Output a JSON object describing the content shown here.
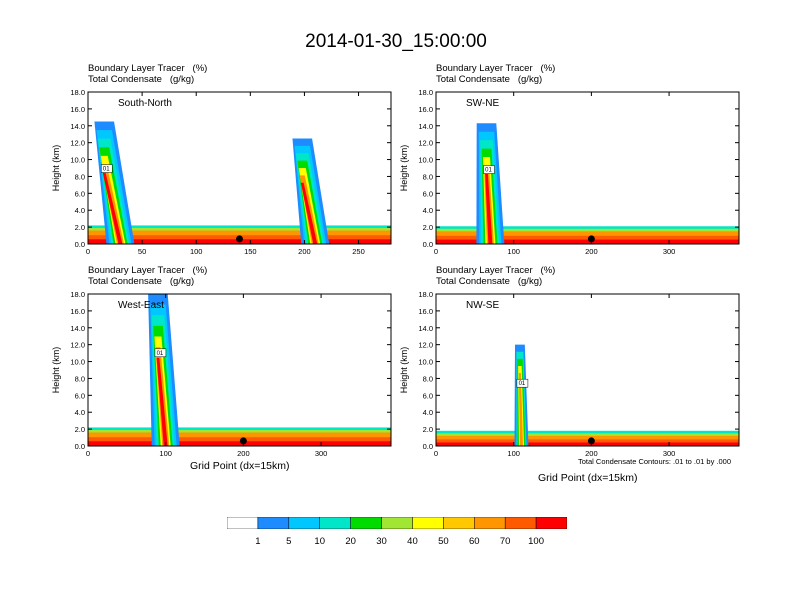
{
  "title": "2014-01-30_15:00:00",
  "panel_header": {
    "line1": "Boundary Layer Tracer   (%)",
    "line2": "Total Condensate   (g/kg)"
  },
  "y_axis_label": "Height (km)",
  "x_axis_label": "Grid Point (dx=15km)",
  "contour_note": "Total Condensate Contours: .01 to .01 by .000",
  "contour_label": "01",
  "colorbar": {
    "labels": [
      "1",
      "5",
      "10",
      "20",
      "30",
      "40",
      "50",
      "60",
      "70",
      "100"
    ],
    "colors": [
      "#ffffff",
      "#1e8cff",
      "#00c8ff",
      "#00e6c8",
      "#00dc00",
      "#a0e632",
      "#ffff00",
      "#ffc800",
      "#ff9600",
      "#ff5a00",
      "#ff0000"
    ]
  },
  "chart_data": [
    {
      "type": "heatmap",
      "panel": "South-North",
      "title": "South-North",
      "xlabel": "",
      "ylabel": "Height (km)",
      "xlim": [
        0,
        280
      ],
      "ylim": [
        0,
        18
      ],
      "x_ticks": [
        0,
        50,
        100,
        150,
        200,
        250
      ],
      "y_ticks": [
        "0.0",
        "2.0",
        "4.0",
        "6.0",
        "8.0",
        "10.0",
        "12.0",
        "14.0",
        "16.0",
        "18.0"
      ],
      "marker_x": 140,
      "plumes": [
        {
          "x_base": 30,
          "x_top": 15,
          "top_km": 14.5,
          "intensity": "high"
        },
        {
          "x_base": 210,
          "x_top": 198,
          "top_km": 12.5,
          "intensity": "high"
        }
      ],
      "boundary_layer_top_km": 1.6
    },
    {
      "type": "heatmap",
      "panel": "SW-NE",
      "title": "SW-NE",
      "xlabel": "",
      "ylabel": "Height (km)",
      "xlim": [
        0,
        390
      ],
      "ylim": [
        0,
        18
      ],
      "x_ticks": [
        0,
        100,
        200,
        300
      ],
      "y_ticks": [
        "0.0",
        "2.0",
        "4.0",
        "6.0",
        "8.0",
        "10.0",
        "12.0",
        "14.0",
        "16.0",
        "18.0"
      ],
      "marker_x": 200,
      "plumes": [
        {
          "x_base": 70,
          "x_top": 65,
          "top_km": 14.3,
          "intensity": "high"
        }
      ],
      "boundary_layer_top_km": 1.5
    },
    {
      "type": "heatmap",
      "panel": "West-East",
      "title": "West-East",
      "xlabel": "Grid Point (dx=15km)",
      "ylabel": "Height (km)",
      "xlim": [
        0,
        390
      ],
      "ylim": [
        0,
        18
      ],
      "x_ticks": [
        0,
        100,
        200,
        300
      ],
      "y_ticks": [
        "0.0",
        "2.0",
        "4.0",
        "6.0",
        "8.0",
        "10.0",
        "12.0",
        "14.0",
        "16.0",
        "18.0"
      ],
      "marker_x": 200,
      "plumes": [
        {
          "x_base": 100,
          "x_top": 90,
          "top_km": 18.0,
          "intensity": "high"
        }
      ],
      "boundary_layer_top_km": 1.6
    },
    {
      "type": "heatmap",
      "panel": "NW-SE",
      "title": "NW-SE",
      "xlabel": "Grid Point (dx=15km)",
      "ylabel": "Height (km)",
      "xlim": [
        0,
        390
      ],
      "ylim": [
        0,
        18
      ],
      "x_ticks": [
        0,
        100,
        200,
        300
      ],
      "y_ticks": [
        "0.0",
        "2.0",
        "4.0",
        "6.0",
        "8.0",
        "10.0",
        "12.0",
        "14.0",
        "16.0",
        "18.0"
      ],
      "marker_x": 200,
      "plumes": [
        {
          "x_base": 110,
          "x_top": 108,
          "top_km": 12.0,
          "intensity": "low"
        }
      ],
      "boundary_layer_top_km": 1.2
    }
  ]
}
